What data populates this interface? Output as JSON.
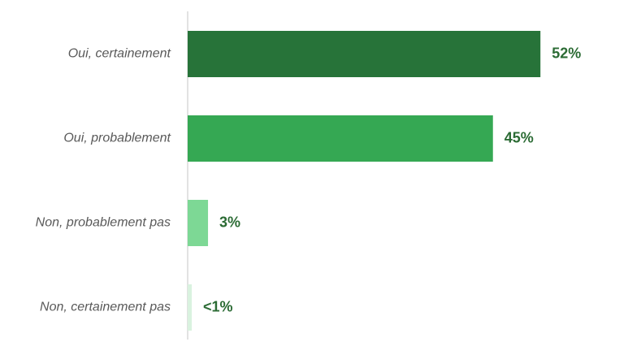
{
  "chart_data": {
    "type": "bar",
    "orientation": "horizontal",
    "title": "",
    "xlabel": "",
    "ylabel": "",
    "xlim": [
      0,
      60
    ],
    "grid": false,
    "legend": "none",
    "categories": [
      "Oui, certainement",
      "Oui, probablement",
      "Non, probablement pas",
      "Non, certainement pas"
    ],
    "values": [
      52,
      45,
      3,
      0.6
    ],
    "data_labels": [
      "52%",
      "45%",
      "3%",
      "<1%"
    ],
    "colors": [
      "#277339",
      "#35a853",
      "#7dd895",
      "#d9f2df"
    ],
    "label_color": "#2b6b34",
    "axis_color": "#d9d9d9"
  }
}
